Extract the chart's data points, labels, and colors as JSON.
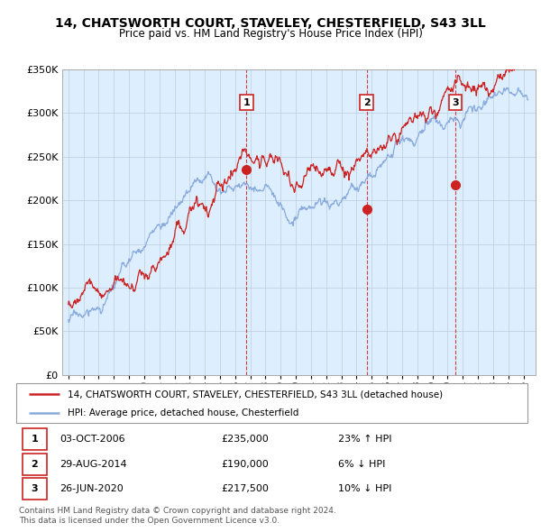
{
  "title": "14, CHATSWORTH COURT, STAVELEY, CHESTERFIELD, S43 3LL",
  "subtitle": "Price paid vs. HM Land Registry's House Price Index (HPI)",
  "ylim": [
    0,
    350000
  ],
  "yticks": [
    0,
    50000,
    100000,
    150000,
    200000,
    250000,
    300000,
    350000
  ],
  "ytick_labels": [
    "£0",
    "£50K",
    "£100K",
    "£150K",
    "£200K",
    "£250K",
    "£300K",
    "£350K"
  ],
  "sale_dates": [
    2006.75,
    2014.66,
    2020.49
  ],
  "sale_prices": [
    235000,
    190000,
    217500
  ],
  "sale_labels": [
    "1",
    "2",
    "3"
  ],
  "sale_info": [
    {
      "label": "1",
      "date": "03-OCT-2006",
      "price": "£235,000",
      "hpi": "23% ↑ HPI"
    },
    {
      "label": "2",
      "date": "29-AUG-2014",
      "price": "£190,000",
      "hpi": "6% ↓ HPI"
    },
    {
      "label": "3",
      "date": "26-JUN-2020",
      "price": "£217,500",
      "hpi": "10% ↓ HPI"
    }
  ],
  "legend_line1": "14, CHATSWORTH COURT, STAVELEY, CHESTERFIELD, S43 3LL (detached house)",
  "legend_line2": "HPI: Average price, detached house, Chesterfield",
  "footer": "Contains HM Land Registry data © Crown copyright and database right 2024.\nThis data is licensed under the Open Government Licence v3.0.",
  "line_color_red": "#cc2222",
  "line_color_blue": "#88aadd",
  "bg_color": "#ddeeff",
  "grid_color": "#bbccdd"
}
